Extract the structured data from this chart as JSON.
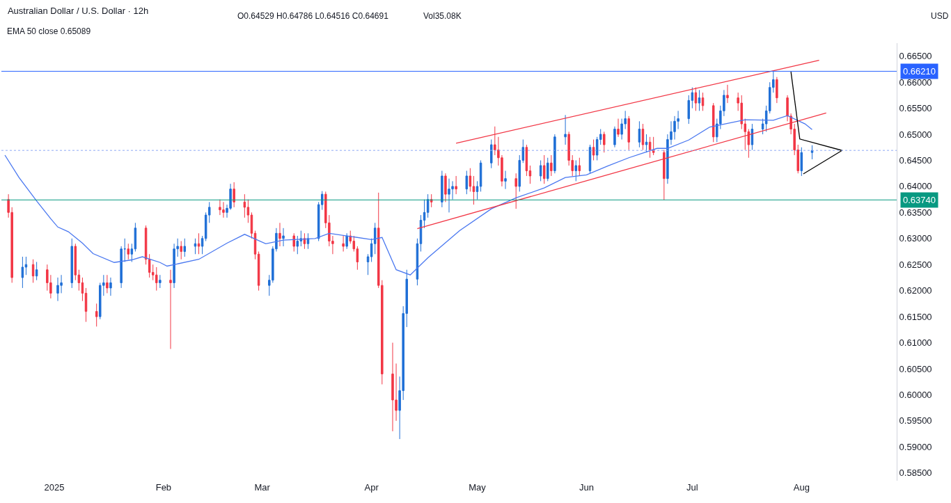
{
  "chart_data": {
    "type": "candlestick",
    "title": "Australian Dollar / U.S. Dollar · 12h",
    "annotations": [
      "O0.64529 H0.64786 L0.64516 C0.64691",
      "Vol35.08K",
      "EMA 50 close 0.65089",
      "USD"
    ],
    "colors": [
      "#f23645",
      "#f23645",
      "#1f6fd6",
      "#1f6fd6",
      "#f23645",
      "#1f6fd6",
      "#f23645",
      "#f23645",
      "#1f6fd6",
      "#1f6fd6",
      "#1f6fd6",
      "#f23645",
      "#f23645",
      "#f23645",
      "#f23645",
      "#f23645",
      "#1f6fd6",
      "#1f6fd6",
      "#f23645",
      "#1f6fd6",
      "#1f6fd6",
      "#1f6fd6",
      "#f23645",
      "#1f6fd6",
      "#1f6fd6",
      "#f23645",
      "#f23645",
      "#f23645",
      "#f23645",
      "#1f6fd6",
      "#f23645",
      "#1f6fd6",
      "#1f6fd6",
      "#f23645",
      "#1f6fd6",
      "#1f6fd6",
      "#f23645",
      "#1f6fd6",
      "#1f6fd6",
      "#1f6fd6",
      "#f23645",
      "#f23645",
      "#1f6fd6",
      "#1f6fd6",
      "#f23645",
      "#f23645",
      "#f23645",
      "#f23645",
      "#f23645",
      "#f23645",
      "#1f6fd6",
      "#1f6fd6",
      "#1f6fd6",
      "#f23645",
      "#1f6fd6",
      "#f23645",
      "#1f6fd6",
      "#1f6fd6",
      "#f23645",
      "#1f6fd6",
      "#1f6fd6",
      "#1f6fd6",
      "#f23645",
      "#f23645",
      "#f23645",
      "#f23645",
      "#1f6fd6",
      "#f23645",
      "#f23645",
      "#f23645",
      "#1f6fd6",
      "#1f6fd6",
      "#1f6fd6",
      "#f23645",
      "#f23645",
      "#f23645",
      "#f23645",
      "#1f6fd6",
      "#1f6fd6",
      "#1f6fd6",
      "#1f6fd6",
      "#1f6fd6",
      "#1f6fd6",
      "#1f6fd6",
      "#f23645",
      "#1f6fd6",
      "#f23645",
      "#1f6fd6",
      "#1f6fd6",
      "#f23645",
      "#1f6fd6",
      "#f23645",
      "#f23645",
      "#1f6fd6",
      "#1f6fd6",
      "#1f6fd6",
      "#f23645",
      "#f23645",
      "#f23645",
      "#1f6fd6",
      "#f23645",
      "#1f6fd6",
      "#1f6fd6",
      "#f23645",
      "#f23645",
      "#1f6fd6",
      "#f23645",
      "#1f6fd6",
      "#f23645",
      "#1f6fd6",
      "#1f6fd6",
      "#f23645",
      "#f23645",
      "#1f6fd6",
      "#f23645",
      "#1f6fd6",
      "#f23645",
      "#1f6fd6",
      "#1f6fd6",
      "#f23645",
      "#1f6fd6",
      "#f23645",
      "#1f6fd6",
      "#1f6fd6",
      "#f23645",
      "#1f6fd6",
      "#f23645",
      "#1f6fd6",
      "#f23645",
      "#f23645",
      "#f23645",
      "#1f6fd6",
      "#1f6fd6",
      "#1f6fd6",
      "#1f6fd6",
      "#1f6fd6",
      "#1f6fd6",
      "#f23645",
      "#1f6fd6",
      "#f23645",
      "#f23645",
      "#1f6fd6",
      "#1f6fd6",
      "#1f6fd6",
      "#f23645",
      "#f23645",
      "#f23645",
      "#f23645",
      "#f23645",
      "#1f6fd6",
      "#1f6fd6",
      "#1f6fd6",
      "#1f6fd6",
      "#1f6fd6",
      "#f23645",
      "#f23645",
      "#f23645",
      "#f23645",
      "#f23645",
      "#1f6fd6",
      "#1f6fd6"
    ],
    "x": [
      "2024-12-19",
      "2024-12-20",
      "2024-12-23",
      "2024-12-24",
      "2024-12-26",
      "2024-12-27",
      "2024-12-30",
      "2024-12-31",
      "2025-01-02",
      "2025-01-03",
      "2025-01-06",
      "2025-01-07",
      "2025-01-08",
      "2025-01-09",
      "2025-01-10",
      "2025-01-13",
      "2025-01-14",
      "2025-01-15",
      "2025-01-16",
      "2025-01-17",
      "2025-01-20",
      "2025-01-21",
      "2025-01-22",
      "2025-01-23",
      "2025-01-24",
      "2025-01-27",
      "2025-01-28",
      "2025-01-29",
      "2025-01-30",
      "2025-01-31",
      "2025-02-03",
      "2025-02-04",
      "2025-02-05",
      "2025-02-06",
      "2025-02-07",
      "2025-02-10",
      "2025-02-11",
      "2025-02-12",
      "2025-02-13",
      "2025-02-14",
      "2025-02-17",
      "2025-02-18",
      "2025-02-19",
      "2025-02-20",
      "2025-02-21",
      "2025-02-24",
      "2025-02-25",
      "2025-02-26",
      "2025-02-27",
      "2025-02-28",
      "2025-03-03",
      "2025-03-04",
      "2025-03-05",
      "2025-03-06",
      "2025-03-07",
      "2025-03-10",
      "2025-03-11",
      "2025-03-12",
      "2025-03-13",
      "2025-03-14",
      "2025-03-17",
      "2025-03-18",
      "2025-03-19",
      "2025-03-20",
      "2025-03-21",
      "2025-03-24",
      "2025-03-25",
      "2025-03-26",
      "2025-03-27",
      "2025-03-28",
      "2025-03-31",
      "2025-04-01",
      "2025-04-02",
      "2025-04-03",
      "2025-04-04",
      "2025-04-07",
      "2025-04-08",
      "2025-04-09",
      "2025-04-10",
      "2025-04-11",
      "2025-04-14",
      "2025-04-15",
      "2025-04-16",
      "2025-04-17",
      "2025-04-18",
      "2025-04-21",
      "2025-04-22",
      "2025-04-23",
      "2025-04-24",
      "2025-04-25",
      "2025-04-28",
      "2025-04-29",
      "2025-04-30",
      "2025-05-01",
      "2025-05-02",
      "2025-05-05",
      "2025-05-06",
      "2025-05-07",
      "2025-05-08",
      "2025-05-09",
      "2025-05-12",
      "2025-05-13",
      "2025-05-14",
      "2025-05-15",
      "2025-05-16",
      "2025-05-19",
      "2025-05-20",
      "2025-05-21",
      "2025-05-22",
      "2025-05-23",
      "2025-05-26",
      "2025-05-27",
      "2025-05-28",
      "2025-05-29",
      "2025-05-30",
      "2025-06-02",
      "2025-06-03",
      "2025-06-04",
      "2025-06-05",
      "2025-06-06",
      "2025-06-09",
      "2025-06-10",
      "2025-06-11",
      "2025-06-12",
      "2025-06-13",
      "2025-06-16",
      "2025-06-17",
      "2025-06-18",
      "2025-06-19",
      "2025-06-20",
      "2025-06-23",
      "2025-06-24",
      "2025-06-25",
      "2025-06-26",
      "2025-06-27",
      "2025-06-30",
      "2025-07-01",
      "2025-07-02",
      "2025-07-03",
      "2025-07-04",
      "2025-07-07",
      "2025-07-08",
      "2025-07-09",
      "2025-07-10",
      "2025-07-11",
      "2025-07-14",
      "2025-07-15",
      "2025-07-16",
      "2025-07-17",
      "2025-07-18",
      "2025-07-21",
      "2025-07-22",
      "2025-07-23",
      "2025-07-24",
      "2025-07-25",
      "2025-07-28",
      "2025-07-29",
      "2025-07-30",
      "2025-07-31",
      "2025-08-01",
      "2025-08-04"
    ],
    "ohlc": [
      [
        0.6375,
        0.6385,
        0.634,
        0.635
      ],
      [
        0.635,
        0.636,
        0.6215,
        0.6225
      ],
      [
        0.6225,
        0.6265,
        0.6205,
        0.6245
      ],
      [
        0.6245,
        0.6265,
        0.623,
        0.625
      ],
      [
        0.625,
        0.626,
        0.6215,
        0.6228
      ],
      [
        0.6228,
        0.6255,
        0.622,
        0.624
      ],
      [
        0.624,
        0.625,
        0.62,
        0.6215
      ],
      [
        0.6215,
        0.623,
        0.6185,
        0.6195
      ],
      [
        0.6195,
        0.6225,
        0.618,
        0.621
      ],
      [
        0.621,
        0.623,
        0.6195,
        0.6215
      ],
      [
        0.6215,
        0.63,
        0.6205,
        0.6285
      ],
      [
        0.6285,
        0.629,
        0.622,
        0.623
      ],
      [
        0.623,
        0.624,
        0.62,
        0.6215
      ],
      [
        0.6215,
        0.6225,
        0.618,
        0.6195
      ],
      [
        0.6195,
        0.6205,
        0.614,
        0.616
      ],
      [
        0.616,
        0.6175,
        0.6131,
        0.615
      ],
      [
        0.615,
        0.6215,
        0.6145,
        0.621
      ],
      [
        0.621,
        0.623,
        0.619,
        0.6215
      ],
      [
        0.6215,
        0.623,
        0.6195,
        0.6205
      ],
      [
        0.6205,
        0.6225,
        0.619,
        0.6215
      ],
      [
        0.6215,
        0.6285,
        0.6205,
        0.628
      ],
      [
        0.628,
        0.63,
        0.6255,
        0.628
      ],
      [
        0.628,
        0.629,
        0.626,
        0.627
      ],
      [
        0.627,
        0.629,
        0.6255,
        0.628
      ],
      [
        0.628,
        0.633,
        0.6275,
        0.632
      ],
      [
        0.632,
        0.6325,
        0.625,
        0.626
      ],
      [
        0.626,
        0.627,
        0.6225,
        0.6235
      ],
      [
        0.6235,
        0.625,
        0.622,
        0.623
      ],
      [
        0.623,
        0.6245,
        0.62,
        0.6215
      ],
      [
        0.6215,
        0.623,
        0.6205,
        0.622
      ],
      [
        0.622,
        0.624,
        0.6088,
        0.6215
      ],
      [
        0.6215,
        0.629,
        0.6205,
        0.628
      ],
      [
        0.628,
        0.63,
        0.6265,
        0.6285
      ],
      [
        0.6285,
        0.6295,
        0.626,
        0.6275
      ],
      [
        0.6275,
        0.63,
        0.6265,
        0.6285
      ],
      [
        0.6285,
        0.63,
        0.627,
        0.629
      ],
      [
        0.629,
        0.631,
        0.627,
        0.6285
      ],
      [
        0.6285,
        0.6305,
        0.627,
        0.63
      ],
      [
        0.63,
        0.635,
        0.6295,
        0.6345
      ],
      [
        0.6345,
        0.637,
        0.633,
        0.636
      ],
      [
        0.636,
        0.6375,
        0.6345,
        0.6355
      ],
      [
        0.6355,
        0.637,
        0.634,
        0.635
      ],
      [
        0.635,
        0.6365,
        0.634,
        0.6358
      ],
      [
        0.6358,
        0.6405,
        0.6355,
        0.6395
      ],
      [
        0.6395,
        0.6408,
        0.636,
        0.637
      ],
      [
        0.637,
        0.6385,
        0.634,
        0.636
      ],
      [
        0.636,
        0.6375,
        0.633,
        0.6345
      ],
      [
        0.6345,
        0.635,
        0.63,
        0.631
      ],
      [
        0.631,
        0.6315,
        0.626,
        0.627
      ],
      [
        0.627,
        0.6275,
        0.62,
        0.621
      ],
      [
        0.621,
        0.623,
        0.619,
        0.622
      ],
      [
        0.622,
        0.6285,
        0.6215,
        0.628
      ],
      [
        0.628,
        0.632,
        0.6275,
        0.631
      ],
      [
        0.631,
        0.633,
        0.6285,
        0.63
      ],
      [
        0.63,
        0.632,
        0.6285,
        0.6305
      ],
      [
        0.6305,
        0.631,
        0.6275,
        0.6285
      ],
      [
        0.6285,
        0.6305,
        0.627,
        0.6295
      ],
      [
        0.6295,
        0.6315,
        0.6285,
        0.63
      ],
      [
        0.63,
        0.631,
        0.628,
        0.629
      ],
      [
        0.629,
        0.631,
        0.628,
        0.63
      ],
      [
        0.63,
        0.637,
        0.6295,
        0.6365
      ],
      [
        0.6365,
        0.6391,
        0.6355,
        0.6385
      ],
      [
        0.6385,
        0.639,
        0.632,
        0.633
      ],
      [
        0.633,
        0.6345,
        0.6285,
        0.6295
      ],
      [
        0.6295,
        0.6305,
        0.627,
        0.629
      ],
      [
        0.629,
        0.6305,
        0.6275,
        0.6285
      ],
      [
        0.6285,
        0.631,
        0.628,
        0.6305
      ],
      [
        0.6305,
        0.6315,
        0.629,
        0.6295
      ],
      [
        0.6295,
        0.6305,
        0.6275,
        0.628
      ],
      [
        0.628,
        0.6285,
        0.624,
        0.6255
      ],
      [
        0.6255,
        0.627,
        0.623,
        0.6265
      ],
      [
        0.6265,
        0.63,
        0.6255,
        0.629
      ],
      [
        0.629,
        0.633,
        0.627,
        0.632
      ],
      [
        0.632,
        0.6388,
        0.6205,
        0.621
      ],
      [
        0.621,
        0.622,
        0.602,
        0.604
      ],
      [
        0.604,
        0.61,
        0.593,
        0.599
      ],
      [
        0.599,
        0.606,
        0.595,
        0.597
      ],
      [
        0.597,
        0.6035,
        0.5915,
        0.6008
      ],
      [
        0.6008,
        0.617,
        0.599,
        0.6156
      ],
      [
        0.6156,
        0.624,
        0.613,
        0.6222
      ],
      [
        0.6222,
        0.63,
        0.621,
        0.629
      ],
      [
        0.629,
        0.6345,
        0.6275,
        0.6335
      ],
      [
        0.6335,
        0.6375,
        0.632,
        0.635
      ],
      [
        0.635,
        0.6385,
        0.634,
        0.6375
      ],
      [
        0.6375,
        0.6385,
        0.636,
        0.637
      ],
      [
        0.637,
        0.643,
        0.636,
        0.642
      ],
      [
        0.642,
        0.6425,
        0.637,
        0.6385
      ],
      [
        0.6385,
        0.6415,
        0.635,
        0.6395
      ],
      [
        0.6395,
        0.641,
        0.6375,
        0.64
      ],
      [
        0.64,
        0.642,
        0.6385,
        0.6395
      ],
      [
        0.6395,
        0.643,
        0.6385,
        0.642
      ],
      [
        0.642,
        0.6435,
        0.639,
        0.64
      ],
      [
        0.64,
        0.642,
        0.6365,
        0.639
      ],
      [
        0.639,
        0.641,
        0.6375,
        0.64
      ],
      [
        0.64,
        0.645,
        0.639,
        0.6445
      ],
      [
        0.6445,
        0.649,
        0.6435,
        0.648
      ],
      [
        0.648,
        0.6515,
        0.646,
        0.647
      ],
      [
        0.647,
        0.6495,
        0.644,
        0.6455
      ],
      [
        0.6455,
        0.646,
        0.64,
        0.641
      ],
      [
        0.641,
        0.643,
        0.6395,
        0.6415
      ],
      [
        0.6415,
        0.6425,
        0.6357,
        0.64
      ],
      [
        0.64,
        0.646,
        0.639,
        0.645
      ],
      [
        0.645,
        0.649,
        0.6445,
        0.6475
      ],
      [
        0.6475,
        0.648,
        0.642,
        0.643
      ],
      [
        0.643,
        0.644,
        0.6405,
        0.642
      ],
      [
        0.642,
        0.645,
        0.641,
        0.644
      ],
      [
        0.644,
        0.646,
        0.6405,
        0.6415
      ],
      [
        0.6415,
        0.6455,
        0.641,
        0.6445
      ],
      [
        0.6445,
        0.646,
        0.642,
        0.643
      ],
      [
        0.643,
        0.65,
        0.6425,
        0.6495
      ],
      [
        0.6495,
        0.6537,
        0.648,
        0.65
      ],
      [
        0.65,
        0.6505,
        0.644,
        0.645
      ],
      [
        0.645,
        0.646,
        0.642,
        0.643
      ],
      [
        0.643,
        0.645,
        0.641,
        0.644
      ],
      [
        0.644,
        0.6455,
        0.642,
        0.643
      ],
      [
        0.643,
        0.648,
        0.6425,
        0.6475
      ],
      [
        0.6475,
        0.649,
        0.645,
        0.646
      ],
      [
        0.646,
        0.6495,
        0.645,
        0.649
      ],
      [
        0.649,
        0.651,
        0.648,
        0.65
      ],
      [
        0.65,
        0.6505,
        0.6465,
        0.648
      ],
      [
        0.648,
        0.6515,
        0.6475,
        0.651
      ],
      [
        0.651,
        0.653,
        0.6495,
        0.65
      ],
      [
        0.65,
        0.653,
        0.649,
        0.652
      ],
      [
        0.652,
        0.6545,
        0.651,
        0.653
      ],
      [
        0.653,
        0.6535,
        0.647,
        0.6485
      ],
      [
        0.6485,
        0.6525,
        0.6475,
        0.651
      ],
      [
        0.651,
        0.652,
        0.647,
        0.648
      ],
      [
        0.648,
        0.65,
        0.6465,
        0.6485
      ],
      [
        0.6485,
        0.6495,
        0.6455,
        0.647
      ],
      [
        0.647,
        0.6495,
        0.646,
        0.6465
      ],
      [
        0.6465,
        0.647,
        0.6374,
        0.6415
      ],
      [
        0.6415,
        0.65,
        0.6405,
        0.649
      ],
      [
        0.649,
        0.6525,
        0.648,
        0.6505
      ],
      [
        0.6505,
        0.6535,
        0.649,
        0.6525
      ],
      [
        0.6525,
        0.6545,
        0.651,
        0.653
      ],
      [
        0.653,
        0.6575,
        0.652,
        0.6565
      ],
      [
        0.6565,
        0.659,
        0.655,
        0.658
      ],
      [
        0.658,
        0.659,
        0.6545,
        0.656
      ],
      [
        0.656,
        0.6585,
        0.6545,
        0.657
      ],
      [
        0.657,
        0.658,
        0.6545,
        0.6555
      ],
      [
        0.6555,
        0.656,
        0.6485,
        0.6495
      ],
      [
        0.6495,
        0.653,
        0.6485,
        0.652
      ],
      [
        0.652,
        0.6555,
        0.651,
        0.6545
      ],
      [
        0.6545,
        0.6585,
        0.6535,
        0.6575
      ],
      [
        0.6575,
        0.6595,
        0.656,
        0.657
      ],
      [
        0.657,
        0.658,
        0.6545,
        0.656
      ],
      [
        0.656,
        0.6575,
        0.651,
        0.652
      ],
      [
        0.652,
        0.653,
        0.647,
        0.6505
      ],
      [
        0.6505,
        0.651,
        0.6455,
        0.648
      ],
      [
        0.648,
        0.652,
        0.647,
        0.651
      ],
      [
        0.651,
        0.653,
        0.65,
        0.652
      ],
      [
        0.652,
        0.6555,
        0.6505,
        0.6545
      ],
      [
        0.6545,
        0.66,
        0.654,
        0.659
      ],
      [
        0.659,
        0.6621,
        0.658,
        0.6605
      ],
      [
        0.6605,
        0.661,
        0.656,
        0.657
      ],
      [
        0.657,
        0.6575,
        0.6525,
        0.6535
      ],
      [
        0.6535,
        0.654,
        0.65,
        0.651
      ],
      [
        0.651,
        0.652,
        0.646,
        0.647
      ],
      [
        0.647,
        0.648,
        0.6425,
        0.643
      ],
      [
        0.643,
        0.6475,
        0.642,
        0.6465
      ],
      [
        0.6465,
        0.6479,
        0.6452,
        0.6469
      ]
    ],
    "series": [
      {
        "type": "line",
        "color": "#4a78f0",
        "x": [
          "2024-12-18",
          "2024-12-22",
          "2024-12-27",
          "2024-12-31",
          "2025-01-02",
          "2025-01-05",
          "2025-01-09",
          "2025-01-12",
          "2025-01-18",
          "2025-01-23",
          "2025-01-26",
          "2025-01-31",
          "2025-02-02",
          "2025-02-11",
          "2025-02-19",
          "2025-02-24",
          "2025-03-02",
          "2025-03-07",
          "2025-03-16",
          "2025-03-20",
          "2025-04-01",
          "2025-04-04",
          "2025-04-08",
          "2025-04-12",
          "2025-04-17",
          "2025-04-26",
          "2025-05-05",
          "2025-05-12",
          "2025-05-20",
          "2025-05-26",
          "2025-06-01",
          "2025-06-07",
          "2025-06-13",
          "2025-06-21",
          "2025-06-24",
          "2025-06-30",
          "2025-07-06",
          "2025-07-16",
          "2025-07-24",
          "2025-07-28",
          "2025-08-02",
          "2025-08-04"
        ],
        "values": [
          0.646,
          0.6417,
          0.6372,
          0.6338,
          0.6322,
          0.6313,
          0.6291,
          0.6271,
          0.6254,
          0.6259,
          0.6265,
          0.6254,
          0.6247,
          0.626,
          0.6291,
          0.6308,
          0.629,
          0.6297,
          0.63,
          0.631,
          0.6298,
          0.6302,
          0.624,
          0.623,
          0.6263,
          0.6315,
          0.6357,
          0.6378,
          0.6397,
          0.6417,
          0.6422,
          0.6439,
          0.6455,
          0.6473,
          0.6473,
          0.6489,
          0.6514,
          0.6528,
          0.6527,
          0.6536,
          0.652,
          0.6509
        ]
      },
      {
        "type": "line",
        "color": "#f23645",
        "x": [
          "2025-04-25",
          "2025-08-06"
        ],
        "values": [
          0.6483,
          0.6642
        ]
      },
      {
        "type": "line",
        "color": "#f23645",
        "x": [
          "2025-04-14",
          "2025-08-08"
        ],
        "values": [
          0.6319,
          0.6541
        ]
      },
      {
        "type": "line",
        "color": "#000000",
        "x": [
          "2025-07-29",
          "2025-07-31T12:00",
          "2025-08-12T12:00",
          "2025-08-01T12:00"
        ],
        "values": [
          0.662,
          0.6491,
          0.6469,
          0.6424
        ]
      }
    ],
    "ref_lines": [
      {
        "axis": "y",
        "value": 0.6621,
        "label": "0.66210",
        "color": "#2962ff",
        "line_style": "solid"
      },
      {
        "axis": "y",
        "value": 0.6374,
        "label": "0.63740",
        "color": "#089981",
        "line_style": "solid"
      },
      {
        "axis": "y",
        "value": 0.64691,
        "label": null,
        "color": "#8fa8f5",
        "line_style": "dotted"
      }
    ],
    "xlim": [
      "2024-12-17",
      "2025-08-28"
    ],
    "xticks": [
      {
        "value": "2025-01-01",
        "label": "2025"
      },
      {
        "value": "2025-02-01",
        "label": "Feb"
      },
      {
        "value": "2025-03-01",
        "label": "Mar"
      },
      {
        "value": "2025-04-01",
        "label": "Apr"
      },
      {
        "value": "2025-05-01",
        "label": "May"
      },
      {
        "value": "2025-06-01",
        "label": "Jun"
      },
      {
        "value": "2025-07-01",
        "label": "Jul"
      },
      {
        "value": "2025-08-01",
        "label": "Aug"
      }
    ],
    "ylim": [
      0.5835,
      0.6675
    ],
    "yticks": [
      {
        "value": 0.585,
        "label": "0.58500"
      },
      {
        "value": 0.59,
        "label": "0.59000"
      },
      {
        "value": 0.595,
        "label": "0.59500"
      },
      {
        "value": 0.6,
        "label": "0.60000"
      },
      {
        "value": 0.605,
        "label": "0.60500"
      },
      {
        "value": 0.61,
        "label": "0.61000"
      },
      {
        "value": 0.615,
        "label": "0.61500"
      },
      {
        "value": 0.62,
        "label": "0.62000"
      },
      {
        "value": 0.625,
        "label": "0.62500"
      },
      {
        "value": 0.63,
        "label": "0.63000"
      },
      {
        "value": 0.635,
        "label": "0.63500"
      },
      {
        "value": 0.64,
        "label": "0.64000"
      },
      {
        "value": 0.645,
        "label": "0.64500"
      },
      {
        "value": 0.65,
        "label": "0.65000"
      },
      {
        "value": 0.655,
        "label": "0.65500"
      },
      {
        "value": 0.66,
        "label": "0.66000"
      },
      {
        "value": 0.665,
        "label": "0.66500"
      }
    ]
  }
}
